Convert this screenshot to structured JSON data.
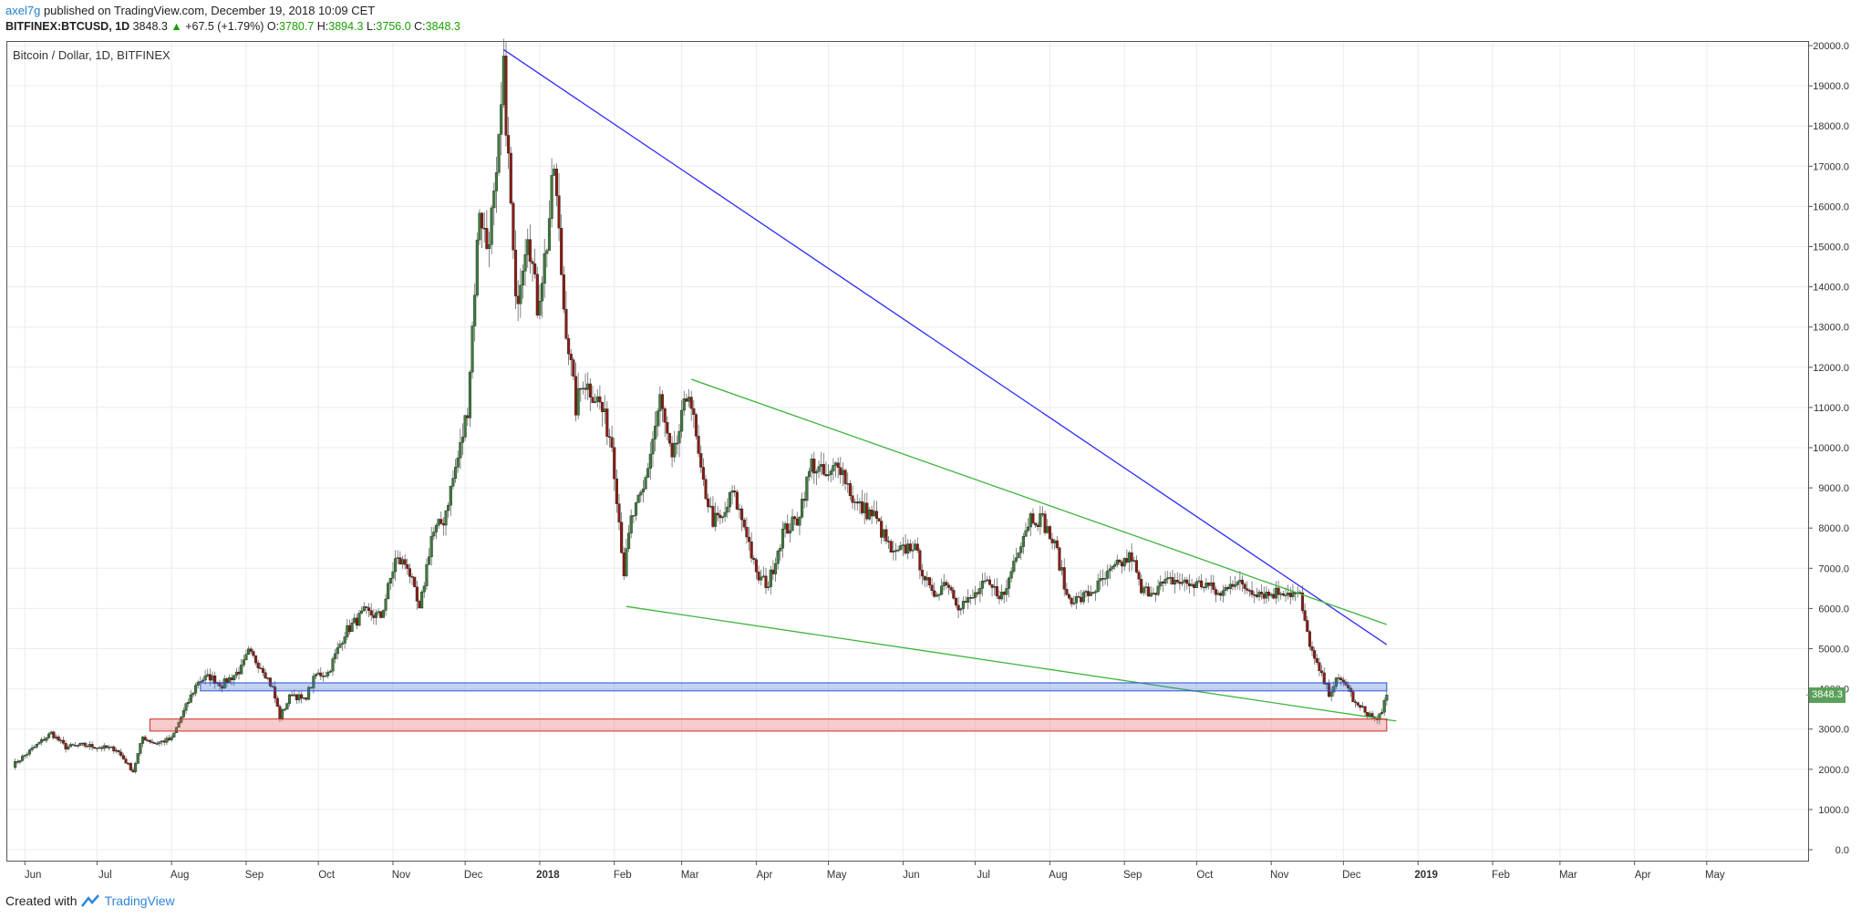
{
  "header": {
    "author": "axel7g",
    "published": "published on TradingView.com, December 19, 2018 10:09 CET",
    "symbol": "BITFINEX:BTCUSD, 1D",
    "last": "3848.3",
    "change_arrow": "▲",
    "change": "+67.5 (+1.79%)",
    "o_label": "O:",
    "o_value": "3780.7",
    "h_label": "H:",
    "h_value": "3894.3",
    "l_label": "L:",
    "l_value": "3756.0",
    "c_label": "C:",
    "c_value": "3848.3"
  },
  "chart_title": "Bitcoin / Dollar, 1D, BITFINEX",
  "price_tag": "3848.3",
  "footer": {
    "created": "Created with",
    "brand": "TradingView"
  },
  "colors": {
    "up": "#3c7d3c",
    "down": "#8c1c13",
    "blue_line": "#2d2dff",
    "green_line": "#3cb43c",
    "blue_zone": "#3d6fd6",
    "red_zone": "#e05a5a",
    "grid": "#ececec",
    "tag": "#5aa05a"
  },
  "chart_data": {
    "type": "candlestick",
    "title": "Bitcoin / Dollar, 1D, BITFINEX",
    "x_ticks": [
      "Jun",
      "Jul",
      "Aug",
      "Sep",
      "Oct",
      "Nov",
      "Dec",
      "2018",
      "Feb",
      "Mar",
      "Apr",
      "May",
      "Jun",
      "Jul",
      "Aug",
      "Sep",
      "Oct",
      "Nov",
      "Dec",
      "2019",
      "Feb",
      "Mar",
      "Apr",
      "May"
    ],
    "y_ticks": [
      "0.0",
      "1000.0",
      "2000.0",
      "3000.0",
      "4000.0",
      "5000.0",
      "6000.0",
      "7000.0",
      "8000.0",
      "9000.0",
      "10000.0",
      "11000.0",
      "12000.0",
      "13000.0",
      "14000.0",
      "15000.0",
      "16000.0",
      "17000.0",
      "18000.0",
      "19000.0",
      "20000.0"
    ],
    "ylim": [
      0,
      20000
    ],
    "x_start": "2017-05-27",
    "x_end": "2019-05-31",
    "grid": true,
    "close_series": [
      [
        "2017-05-27",
        2100
      ],
      [
        "2017-06-05",
        2550
      ],
      [
        "2017-06-12",
        2900
      ],
      [
        "2017-06-18",
        2550
      ],
      [
        "2017-06-25",
        2600
      ],
      [
        "2017-07-02",
        2550
      ],
      [
        "2017-07-09",
        2500
      ],
      [
        "2017-07-16",
        1950
      ],
      [
        "2017-07-20",
        2800
      ],
      [
        "2017-07-25",
        2650
      ],
      [
        "2017-08-01",
        2750
      ],
      [
        "2017-08-05",
        3300
      ],
      [
        "2017-08-12",
        4200
      ],
      [
        "2017-08-17",
        4300
      ],
      [
        "2017-08-22",
        4100
      ],
      [
        "2017-08-30",
        4500
      ],
      [
        "2017-09-02",
        4900
      ],
      [
        "2017-09-08",
        4500
      ],
      [
        "2017-09-12",
        4000
      ],
      [
        "2017-09-15",
        3300
      ],
      [
        "2017-09-20",
        3900
      ],
      [
        "2017-09-25",
        3700
      ],
      [
        "2017-09-30",
        4350
      ],
      [
        "2017-10-05",
        4400
      ],
      [
        "2017-10-12",
        5400
      ],
      [
        "2017-10-20",
        5900
      ],
      [
        "2017-10-27",
        5800
      ],
      [
        "2017-11-02",
        7200
      ],
      [
        "2017-11-07",
        7100
      ],
      [
        "2017-11-12",
        5900
      ],
      [
        "2017-11-17",
        7800
      ],
      [
        "2017-11-22",
        8200
      ],
      [
        "2017-11-29",
        10000
      ],
      [
        "2017-12-02",
        11000
      ],
      [
        "2017-12-07",
        16000
      ],
      [
        "2017-12-10",
        15000
      ],
      [
        "2017-12-14",
        16500
      ],
      [
        "2017-12-17",
        19300
      ],
      [
        "2017-12-20",
        16000
      ],
      [
        "2017-12-22",
        13500
      ],
      [
        "2017-12-27",
        15500
      ],
      [
        "2017-12-31",
        13500
      ],
      [
        "2018-01-04",
        15100
      ],
      [
        "2018-01-07",
        17000
      ],
      [
        "2018-01-11",
        13500
      ],
      [
        "2018-01-16",
        11000
      ],
      [
        "2018-01-19",
        11700
      ],
      [
        "2018-01-26",
        11100
      ],
      [
        "2018-01-31",
        10100
      ],
      [
        "2018-02-05",
        6900
      ],
      [
        "2018-02-08",
        8200
      ],
      [
        "2018-02-13",
        8900
      ],
      [
        "2018-02-20",
        11200
      ],
      [
        "2018-02-25",
        9600
      ],
      [
        "2018-03-04",
        11500
      ],
      [
        "2018-03-09",
        9300
      ],
      [
        "2018-03-14",
        8200
      ],
      [
        "2018-03-18",
        8200
      ],
      [
        "2018-03-22",
        8900
      ],
      [
        "2018-03-28",
        7900
      ],
      [
        "2018-04-01",
        6800
      ],
      [
        "2018-04-06",
        6600
      ],
      [
        "2018-04-12",
        7900
      ],
      [
        "2018-04-18",
        8200
      ],
      [
        "2018-04-24",
        9600
      ],
      [
        "2018-05-01",
        9200
      ],
      [
        "2018-05-05",
        9700
      ],
      [
        "2018-05-12",
        8600
      ],
      [
        "2018-05-20",
        8300
      ],
      [
        "2018-05-28",
        7300
      ],
      [
        "2018-06-05",
        7600
      ],
      [
        "2018-06-13",
        6300
      ],
      [
        "2018-06-19",
        6700
      ],
      [
        "2018-06-24",
        6100
      ],
      [
        "2018-06-29",
        6200
      ],
      [
        "2018-07-05",
        6600
      ],
      [
        "2018-07-13",
        6300
      ],
      [
        "2018-07-18",
        7400
      ],
      [
        "2018-07-24",
        8300
      ],
      [
        "2018-07-29",
        8200
      ],
      [
        "2018-08-04",
        7400
      ],
      [
        "2018-08-08",
        6300
      ],
      [
        "2018-08-13",
        6200
      ],
      [
        "2018-08-20",
        6500
      ],
      [
        "2018-08-28",
        7000
      ],
      [
        "2018-09-04",
        7300
      ],
      [
        "2018-09-08",
        6400
      ],
      [
        "2018-09-14",
        6500
      ],
      [
        "2018-09-21",
        6700
      ],
      [
        "2018-09-28",
        6600
      ],
      [
        "2018-10-05",
        6600
      ],
      [
        "2018-10-11",
        6300
      ],
      [
        "2018-10-15",
        6700
      ],
      [
        "2018-10-22",
        6500
      ],
      [
        "2018-10-31",
        6350
      ],
      [
        "2018-11-06",
        6450
      ],
      [
        "2018-11-13",
        6300
      ],
      [
        "2018-11-15",
        5600
      ],
      [
        "2018-11-19",
        4700
      ],
      [
        "2018-11-22",
        4300
      ],
      [
        "2018-11-25",
        3900
      ],
      [
        "2018-11-28",
        4200
      ],
      [
        "2018-12-02",
        4150
      ],
      [
        "2018-12-06",
        3600
      ],
      [
        "2018-12-10",
        3450
      ],
      [
        "2018-12-15",
        3200
      ],
      [
        "2018-12-17",
        3500
      ],
      [
        "2018-12-19",
        3848.3
      ]
    ],
    "annotations": [
      {
        "type": "trendline",
        "color": "blue",
        "from": [
          "2017-12-17",
          19900
        ],
        "to": [
          "2018-12-19",
          5100
        ]
      },
      {
        "type": "trendline",
        "color": "green",
        "from": [
          "2018-03-05",
          11700
        ],
        "to": [
          "2018-12-19",
          5600
        ]
      },
      {
        "type": "trendline",
        "color": "green",
        "from": [
          "2018-02-06",
          6050
        ],
        "to": [
          "2018-12-23",
          3200
        ]
      },
      {
        "type": "zone",
        "color": "blue",
        "from": [
          "2017-08-13",
          3950
        ],
        "to": [
          "2018-12-19",
          4150
        ]
      },
      {
        "type": "zone",
        "color": "red",
        "from": [
          "2017-07-23",
          2950
        ],
        "to": [
          "2018-12-19",
          3250
        ]
      }
    ]
  }
}
